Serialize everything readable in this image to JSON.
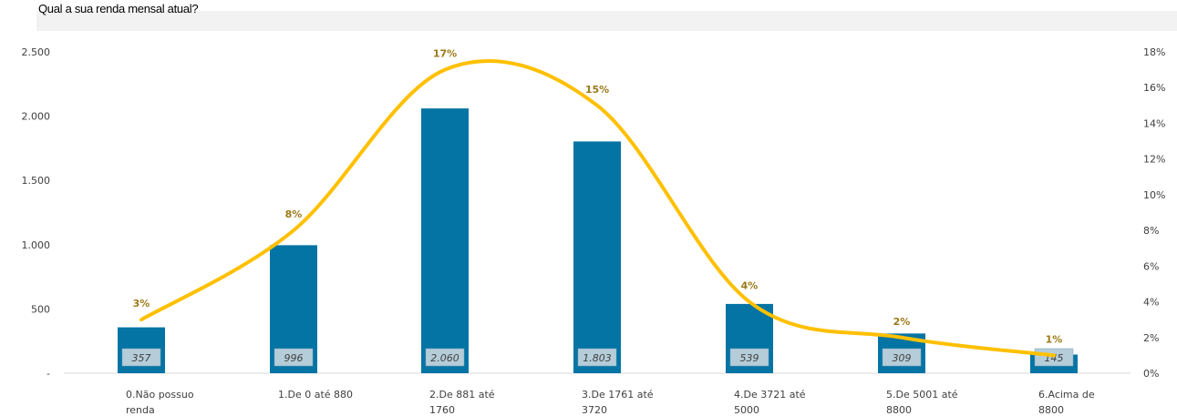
{
  "chart_data": {
    "type": "bar",
    "title": "Qual a sua renda mensal atual?",
    "categories": [
      [
        "0.Não possuo",
        "renda"
      ],
      [
        "1.De 0 até 880",
        ""
      ],
      [
        "2.De 881 até",
        "1760"
      ],
      [
        "3.De 1761 até",
        "3720"
      ],
      [
        "4.De 3721 até",
        "5000"
      ],
      [
        "5.De 5001 até",
        "8800"
      ],
      [
        "6.Acima de",
        "8800"
      ]
    ],
    "series": [
      {
        "type": "bar",
        "values": [
          357,
          996,
          2060,
          1803,
          539,
          309,
          145
        ],
        "labels": [
          "357",
          "996",
          "2.060",
          "1.803",
          "539",
          "309",
          "145"
        ],
        "color": "#0474a4",
        "axis": "left"
      },
      {
        "type": "line",
        "values": [
          3,
          8,
          17,
          15,
          4,
          2,
          1
        ],
        "labels": [
          "3%",
          "8%",
          "17%",
          "15%",
          "4%",
          "2%",
          "1%"
        ],
        "color": "#ffc000",
        "axis": "right",
        "smooth": true
      }
    ],
    "y_left": {
      "ylim": [
        0,
        2500
      ],
      "ticks": [
        "-",
        "500",
        "1.000",
        "1.500",
        "2.000",
        "2.500"
      ]
    },
    "y_right": {
      "ylim": [
        0,
        18
      ],
      "ticks": [
        "0%",
        "2%",
        "4%",
        "6%",
        "8%",
        "10%",
        "12%",
        "14%",
        "16%",
        "18%"
      ]
    },
    "grid": false,
    "legend": "none"
  }
}
